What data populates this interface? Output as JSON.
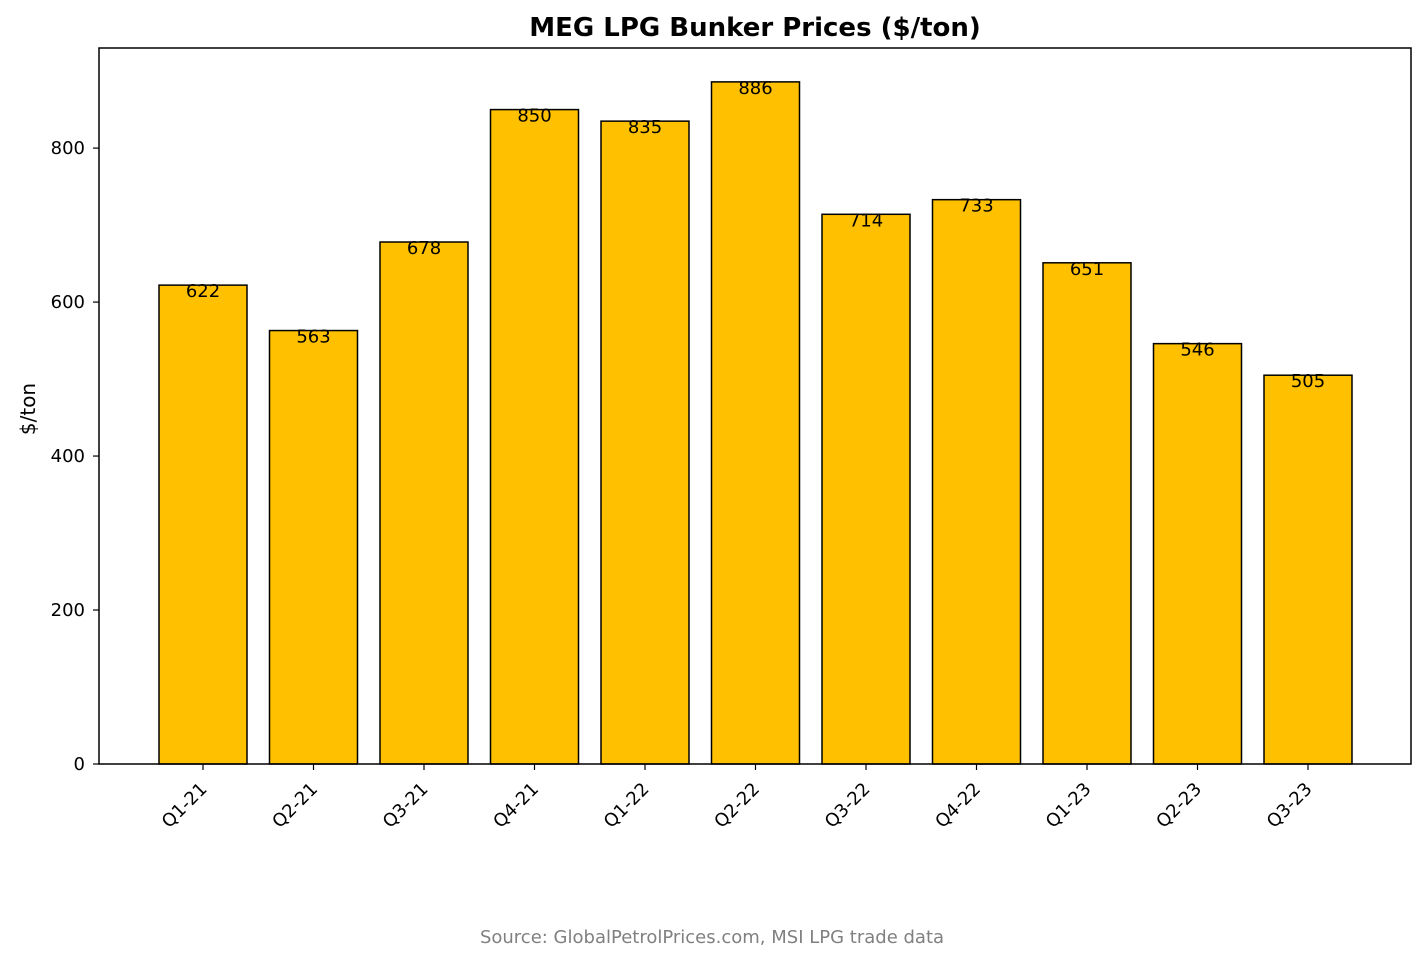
{
  "chart_data": {
    "type": "bar",
    "title": "MEG LPG Bunker Prices ($/ton)",
    "xlabel": "",
    "ylabel": "$/ton",
    "categories": [
      "Q1-21",
      "Q2-21",
      "Q3-21",
      "Q4-21",
      "Q1-22",
      "Q2-22",
      "Q3-22",
      "Q4-22",
      "Q1-23",
      "Q2-23",
      "Q3-23"
    ],
    "values": [
      622,
      563,
      678,
      850,
      835,
      886,
      714,
      733,
      651,
      546,
      505
    ],
    "ylim": [
      0,
      930
    ],
    "yticks": [
      0,
      200,
      400,
      600,
      800
    ],
    "grid": false,
    "legend": "none",
    "bar_color": "#FFC000",
    "bar_edge_color": "#000000",
    "source_note": "Source: GlobalPetrolPrices.com, MSI LPG trade data"
  }
}
